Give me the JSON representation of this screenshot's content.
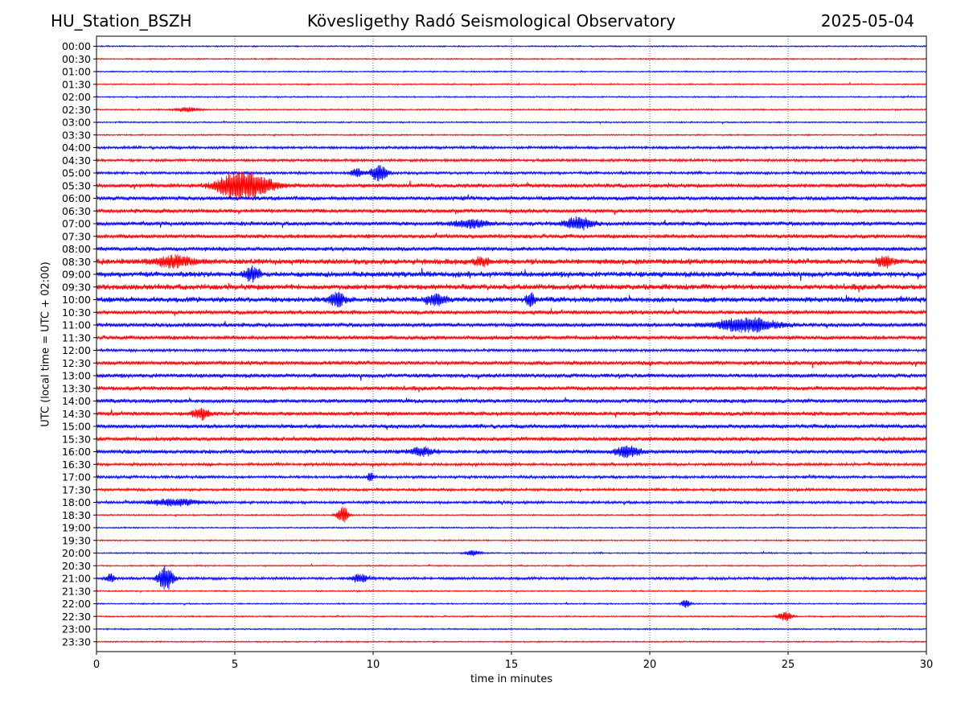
{
  "header": {
    "station": "HU_Station_BSZH",
    "observatory": "Kövesligethy Radó Seismological Observatory",
    "date": "2025-05-04"
  },
  "chart_data": {
    "type": "line",
    "title": "Kövesligethy Radó Seismological Observatory",
    "xlabel": "time in minutes",
    "ylabel": "UTC (local time = UTC + 02:00)",
    "xlim": [
      0,
      30
    ],
    "x_ticks": [
      0,
      5,
      10,
      15,
      20,
      25,
      30
    ],
    "grid": "vertical dotted lines at x ticks",
    "series_colors": [
      "#0000ff",
      "#ff0000"
    ],
    "rows": [
      "00:00",
      "00:30",
      "01:00",
      "01:30",
      "02:00",
      "02:30",
      "03:00",
      "03:30",
      "04:00",
      "04:30",
      "05:00",
      "05:30",
      "06:00",
      "06:30",
      "07:00",
      "07:30",
      "08:00",
      "08:30",
      "09:00",
      "09:30",
      "10:00",
      "10:30",
      "11:00",
      "11:30",
      "12:00",
      "12:30",
      "13:00",
      "13:30",
      "14:00",
      "14:30",
      "15:00",
      "15:30",
      "16:00",
      "16:30",
      "17:00",
      "17:30",
      "18:00",
      "18:30",
      "19:00",
      "19:30",
      "20:00",
      "20:30",
      "21:00",
      "21:30",
      "22:00",
      "22:30",
      "23:00",
      "23:30"
    ],
    "noise_level": [
      1,
      1,
      1,
      1,
      1,
      1,
      1,
      1,
      2,
      2,
      2,
      3,
      3,
      3,
      3,
      3,
      3,
      4,
      4,
      4,
      4,
      3,
      3,
      3,
      2,
      3,
      3,
      3,
      3,
      3,
      3,
      3,
      3,
      2,
      2,
      2,
      2,
      1,
      1,
      1,
      1,
      1,
      2,
      1,
      1,
      1,
      1,
      1
    ],
    "events": [
      {
        "row": "02:30",
        "minute": 3.3,
        "amplitude": 3,
        "duration": 0.8
      },
      {
        "row": "05:00",
        "minute": 10.2,
        "amplitude": 10,
        "duration": 0.6
      },
      {
        "row": "05:00",
        "minute": 9.4,
        "amplitude": 5,
        "duration": 0.4
      },
      {
        "row": "05:30",
        "minute": 5.6,
        "amplitude": 13,
        "duration": 1.6
      },
      {
        "row": "05:30",
        "minute": 4.8,
        "amplitude": 9,
        "duration": 1.2
      },
      {
        "row": "07:00",
        "minute": 17.4,
        "amplitude": 7,
        "duration": 1.0
      },
      {
        "row": "07:00",
        "minute": 13.5,
        "amplitude": 5,
        "duration": 1.2
      },
      {
        "row": "08:30",
        "minute": 2.8,
        "amplitude": 6,
        "duration": 1.4
      },
      {
        "row": "08:30",
        "minute": 28.5,
        "amplitude": 6,
        "duration": 0.6
      },
      {
        "row": "08:30",
        "minute": 13.9,
        "amplitude": 5,
        "duration": 0.5
      },
      {
        "row": "09:00",
        "minute": 5.6,
        "amplitude": 8,
        "duration": 0.5
      },
      {
        "row": "10:00",
        "minute": 8.7,
        "amplitude": 9,
        "duration": 0.5
      },
      {
        "row": "10:00",
        "minute": 12.3,
        "amplitude": 6,
        "duration": 0.8
      },
      {
        "row": "10:00",
        "minute": 15.7,
        "amplitude": 8,
        "duration": 0.3
      },
      {
        "row": "11:00",
        "minute": 23.5,
        "amplitude": 8,
        "duration": 2.2
      },
      {
        "row": "14:30",
        "minute": 3.8,
        "amplitude": 6,
        "duration": 0.6
      },
      {
        "row": "16:00",
        "minute": 19.2,
        "amplitude": 7,
        "duration": 0.8
      },
      {
        "row": "16:00",
        "minute": 11.8,
        "amplitude": 5,
        "duration": 0.8
      },
      {
        "row": "17:00",
        "minute": 9.9,
        "amplitude": 6,
        "duration": 0.2
      },
      {
        "row": "18:00",
        "minute": 2.8,
        "amplitude": 4,
        "duration": 1.8
      },
      {
        "row": "18:30",
        "minute": 8.9,
        "amplitude": 11,
        "duration": 0.4
      },
      {
        "row": "20:00",
        "minute": 13.6,
        "amplitude": 4,
        "duration": 0.5
      },
      {
        "row": "21:00",
        "minute": 2.5,
        "amplitude": 16,
        "duration": 0.5
      },
      {
        "row": "21:00",
        "minute": 9.5,
        "amplitude": 5,
        "duration": 0.5
      },
      {
        "row": "21:00",
        "minute": 0.5,
        "amplitude": 5,
        "duration": 0.3
      },
      {
        "row": "22:00",
        "minute": 21.3,
        "amplitude": 5,
        "duration": 0.3
      },
      {
        "row": "22:30",
        "minute": 24.9,
        "amplitude": 6,
        "duration": 0.5
      }
    ]
  }
}
